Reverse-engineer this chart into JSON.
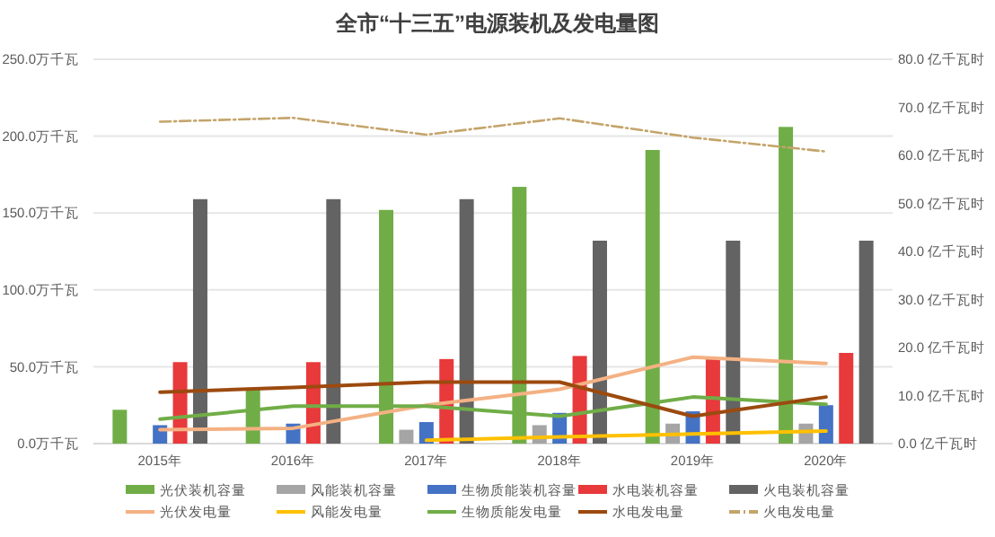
{
  "chart_data": {
    "type": "bar",
    "title": "全市“十三五”电源装机及发电量图",
    "categories": [
      "2015年",
      "2016年",
      "2017年",
      "2018年",
      "2019年",
      "2020年"
    ],
    "series": [
      {
        "name": "光伏装机容量",
        "color": "#70ad47",
        "values": [
          22,
          35,
          152,
          167,
          191,
          206
        ]
      },
      {
        "name": "风能装机容量",
        "color": "#a5a5a5",
        "values": [
          null,
          null,
          9,
          12,
          13,
          13
        ]
      },
      {
        "name": "生物质能装机容量",
        "color": "#4472c4",
        "values": [
          12,
          13,
          14,
          20,
          21,
          25
        ]
      },
      {
        "name": "水电装机容量",
        "color": "#e8393b",
        "values": [
          53,
          53,
          55,
          57,
          56,
          59
        ]
      },
      {
        "name": "火电装机容量",
        "color": "#636363",
        "values": [
          159,
          159,
          159,
          132,
          132,
          132
        ]
      },
      {
        "name": "光伏发电量",
        "type": "line",
        "axis": "y2",
        "color": "#f4b183",
        "values": [
          2.9,
          3.2,
          8,
          11.3,
          18,
          16.7
        ]
      },
      {
        "name": "风能发电量",
        "type": "line",
        "axis": "y2",
        "color": "#ffc000",
        "values": [
          null,
          null,
          0.7,
          1.4,
          2,
          2.6
        ]
      },
      {
        "name": "生物质能发电量",
        "type": "line",
        "axis": "y2",
        "color": "#70ad47",
        "values": [
          5.1,
          7.8,
          7.8,
          5.7,
          9.7,
          8.2
        ]
      },
      {
        "name": "水电发电量",
        "type": "line",
        "axis": "y2",
        "color": "#9c4a0f",
        "values": [
          10.7,
          11.7,
          12.8,
          12.8,
          5.7,
          9.7
        ]
      },
      {
        "name": "火电发电量",
        "type": "line",
        "axis": "y2",
        "color": "#c4a46a",
        "line_style": "dashed",
        "values": [
          67,
          67.8,
          64.3,
          67.7,
          63.7,
          60.8
        ]
      }
    ],
    "ylim": [
      0,
      250
    ],
    "yticks": [
      {
        "value": 0,
        "label": "0.0万千瓦"
      },
      {
        "value": 50,
        "label": "50.0万千瓦"
      },
      {
        "value": 100,
        "label": "100.0万千瓦"
      },
      {
        "value": 150,
        "label": "150.0万千瓦"
      },
      {
        "value": 200,
        "label": "200.0万千瓦"
      },
      {
        "value": 250,
        "label": "250.0万千瓦"
      }
    ],
    "y2lim": [
      0,
      80
    ],
    "y2ticks": [
      {
        "value": 0,
        "label": "0.0 亿千瓦时"
      },
      {
        "value": 10,
        "label": "10.0 亿千瓦时"
      },
      {
        "value": 20,
        "label": "20.0 亿千瓦时"
      },
      {
        "value": 30,
        "label": "30.0 亿千瓦时"
      },
      {
        "value": 40,
        "label": "40.0 亿千瓦时"
      },
      {
        "value": 50,
        "label": "50.0 亿千瓦时"
      },
      {
        "value": 60,
        "label": "60.0 亿千瓦时"
      },
      {
        "value": 70,
        "label": "70.0 亿千瓦时"
      },
      {
        "value": 80,
        "label": "80.0 亿千瓦时"
      }
    ],
    "grid": "y",
    "legend": "bottom"
  }
}
